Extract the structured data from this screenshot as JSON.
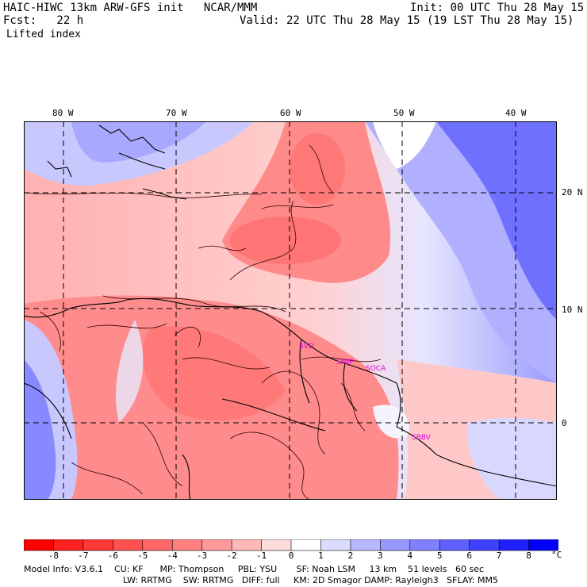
{
  "header": {
    "title": "HAIC-HIWC 13km ARW-GFS init   NCAR/MMM",
    "init": "Init: 00 UTC Thu 28 May 15",
    "fcst": "Fcst:   22 h",
    "valid": "Valid: 22 UTC Thu 28 May 15 (19 LST Thu 28 May 15)",
    "field": "Lifted index"
  },
  "map": {
    "lon_labels": [
      "80 W",
      "70 W",
      "60 W",
      "50 W",
      "40 W"
    ],
    "lat_labels": [
      "20 N",
      "10 N",
      "0"
    ],
    "stations": [
      "SVD",
      "SMJP",
      "SOCA",
      "SBBV"
    ]
  },
  "colorbar": {
    "ticks": [
      "-8",
      "-7",
      "-6",
      "-5",
      "-4",
      "-3",
      "-2",
      "-1",
      "0",
      "1",
      "2",
      "3",
      "4",
      "5",
      "6",
      "7",
      "8"
    ],
    "unit": "°C",
    "colors": [
      "#ff0000",
      "#ff2020",
      "#ff3838",
      "#ff5050",
      "#ff6868",
      "#ff8080",
      "#ff9898",
      "#ffb8b8",
      "#ffdcdc",
      "#ffffff",
      "#dcdcff",
      "#b8b8ff",
      "#9898ff",
      "#8080ff",
      "#6060ff",
      "#4040ff",
      "#2020ff",
      "#0000ff"
    ]
  },
  "footer": {
    "line1": "Model Info: V3.6.1    CU: KF      MP: Thompson     PBL: YSU       SF: Noah LSM     13 km    51 levels   60 sec",
    "line2": "LW: RRTMG    SW: RRTMG   DIFF: full     KM: 2D Smagor DAMP: Rayleigh3   SFLAY: MM5"
  }
}
